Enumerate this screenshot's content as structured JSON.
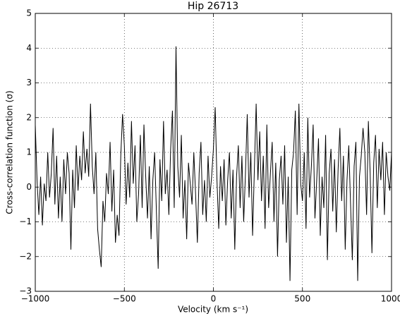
{
  "chart_data": {
    "type": "line",
    "title": "Hip 26713",
    "xlabel": "Velocity (km s⁻¹)",
    "ylabel": "Cross-correlation function (σ)",
    "color": "#000000",
    "grid": true,
    "xlim": [
      -1000,
      1000
    ],
    "ylim": [
      -3,
      5
    ],
    "xticks": [
      {
        "value": -1000,
        "label": "−1000"
      },
      {
        "value": -500,
        "label": "−500"
      },
      0,
      500,
      1000
    ],
    "yticks": [
      {
        "value": -3,
        "label": "−3"
      },
      {
        "value": -2,
        "label": "−2"
      },
      {
        "value": -1,
        "label": "−1"
      },
      0,
      1,
      2,
      3,
      4,
      5
    ],
    "x": [
      -1000,
      -990,
      -980,
      -970,
      -960,
      -950,
      -940,
      -930,
      -920,
      -910,
      -900,
      -890,
      -880,
      -870,
      -860,
      -850,
      -840,
      -830,
      -820,
      -810,
      -800,
      -790,
      -780,
      -770,
      -760,
      -750,
      -740,
      -730,
      -720,
      -710,
      -700,
      -690,
      -680,
      -670,
      -660,
      -650,
      -640,
      -630,
      -620,
      -610,
      -600,
      -590,
      -580,
      -570,
      -560,
      -550,
      -540,
      -530,
      -520,
      -510,
      -500,
      -490,
      -480,
      -470,
      -460,
      -450,
      -440,
      -430,
      -420,
      -410,
      -400,
      -390,
      -380,
      -370,
      -360,
      -350,
      -340,
      -330,
      -320,
      -310,
      -300,
      -290,
      -280,
      -270,
      -260,
      -250,
      -240,
      -230,
      -220,
      -210,
      -200,
      -190,
      -180,
      -170,
      -160,
      -150,
      -140,
      -130,
      -120,
      -110,
      -100,
      -90,
      -80,
      -70,
      -60,
      -50,
      -40,
      -30,
      -20,
      -10,
      0,
      10,
      20,
      30,
      40,
      50,
      60,
      70,
      80,
      90,
      100,
      110,
      120,
      130,
      140,
      150,
      160,
      170,
      180,
      190,
      200,
      210,
      220,
      230,
      240,
      250,
      260,
      270,
      280,
      290,
      300,
      310,
      320,
      330,
      340,
      350,
      360,
      370,
      380,
      390,
      400,
      410,
      420,
      430,
      440,
      450,
      460,
      470,
      480,
      490,
      500,
      510,
      520,
      530,
      540,
      550,
      560,
      570,
      580,
      590,
      600,
      610,
      620,
      630,
      640,
      650,
      660,
      670,
      680,
      690,
      700,
      710,
      720,
      730,
      740,
      750,
      760,
      770,
      780,
      790,
      800,
      810,
      820,
      830,
      840,
      850,
      860,
      870,
      880,
      890,
      900,
      910,
      920,
      930,
      940,
      950,
      960,
      970,
      980,
      990,
      1000
    ],
    "values": [
      1.8,
      0.2,
      -0.8,
      0.3,
      -1.1,
      0.1,
      -0.4,
      1.0,
      -0.3,
      0.4,
      1.7,
      -0.5,
      0.9,
      -0.9,
      0.3,
      -1.0,
      0.8,
      -0.2,
      1.0,
      0.4,
      -1.8,
      0.5,
      -0.6,
      1.2,
      -0.1,
      0.9,
      0.2,
      1.6,
      0.4,
      1.1,
      0.3,
      2.4,
      0.6,
      -0.2,
      1.0,
      -1.2,
      -1.8,
      -2.3,
      -0.4,
      -1.0,
      0.4,
      -0.2,
      1.3,
      -0.7,
      0.5,
      -1.6,
      -0.8,
      -1.4,
      0.9,
      2.1,
      1.2,
      -0.5,
      0.7,
      -0.3,
      1.9,
      0.1,
      1.2,
      -1.0,
      -0.2,
      1.5,
      -0.6,
      1.8,
      0.3,
      -0.9,
      0.6,
      -1.5,
      0.2,
      1.0,
      -0.7,
      -2.35,
      0.8,
      -0.4,
      1.9,
      -0.2,
      0.5,
      -0.8,
      1.1,
      2.2,
      -0.6,
      4.05,
      0.6,
      -0.3,
      1.5,
      -0.9,
      0.2,
      -1.5,
      0.7,
      0.1,
      -0.5,
      1.0,
      -0.2,
      -1.6,
      0.4,
      1.3,
      -0.8,
      0.2,
      -1.0,
      0.9,
      -0.3,
      0.3,
      1.1,
      2.3,
      0.2,
      -1.2,
      0.6,
      -0.4,
      0.8,
      -1.1,
      0.2,
      1.0,
      -0.9,
      0.5,
      -1.8,
      0.3,
      1.2,
      -0.6,
      0.9,
      -1.0,
      0.4,
      2.1,
      -0.3,
      1.0,
      -1.4,
      0.5,
      2.4,
      0.2,
      1.6,
      -0.4,
      0.9,
      -1.2,
      1.8,
      -0.6,
      0.4,
      1.3,
      -1.0,
      0.7,
      -2.0,
      0.2,
      0.9,
      -0.5,
      1.2,
      -1.6,
      0.3,
      -2.7,
      0.5,
      1.0,
      2.2,
      -0.8,
      2.4,
      0.1,
      -0.4,
      1.0,
      -1.2,
      2.0,
      -0.3,
      0.6,
      1.8,
      -0.9,
      0.2,
      1.4,
      -1.4,
      0.3,
      -0.6,
      1.5,
      -2.1,
      0.4,
      1.1,
      -0.7,
      0.8,
      -1.3,
      0.5,
      1.7,
      -0.4,
      0.9,
      -1.8,
      0.2,
      1.2,
      -0.5,
      -2.1,
      0.6,
      1.3,
      -2.7,
      0.3,
      0.9,
      1.7,
      1.0,
      -0.8,
      1.9,
      0.4,
      -1.9,
      0.7,
      1.5,
      -0.6,
      1.1,
      0.2,
      1.3,
      -0.8,
      1.0,
      0.3,
      -0.1,
      1.0
    ]
  }
}
